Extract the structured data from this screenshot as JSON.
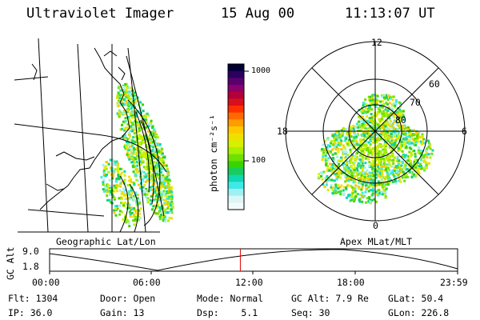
{
  "header": {
    "instrument": "Ultraviolet Imager",
    "date": "15 Aug 00",
    "time": "11:13:07 UT"
  },
  "colorbar": {
    "unit_label": "photon cm⁻²s⁻¹",
    "tick_labels": [
      "1000",
      "100"
    ],
    "colors": [
      "#000033",
      "#2a0060",
      "#5a006e",
      "#8b006b",
      "#b3003a",
      "#d8101a",
      "#ff3000",
      "#ff6a00",
      "#ff9c00",
      "#ffc800",
      "#f0e000",
      "#d6f000",
      "#a8f000",
      "#70e000",
      "#38d400",
      "#18cc60",
      "#10d8b0",
      "#40e8e8",
      "#a0f0f0",
      "#dcf6f6",
      "#f2fbfb"
    ]
  },
  "map_left": {
    "label": "Geographic Lat/Lon"
  },
  "polar_right": {
    "label": "Apex MLat/MLT",
    "hour_labels": [
      "12",
      "18",
      "6",
      "0"
    ],
    "lat_labels": [
      "60",
      "70",
      "80"
    ]
  },
  "timeline": {
    "ylabel": "GC Alt",
    "y_ticks": [
      "9.0",
      "1.8"
    ],
    "x_ticks": [
      "00:00",
      "06:00",
      "12:00",
      "18:00",
      "23:59"
    ],
    "current_time_fraction": 0.4675,
    "marker_color": "#e00000"
  },
  "footer": {
    "row1": [
      "Flt: 1304",
      "Door: Open",
      "Mode: Normal",
      "GC Alt: 7.9 Re",
      "GLat: 50.4"
    ],
    "row2": [
      "IP: 36.0",
      "Gain: 13",
      "Dsp:    5.1",
      "Seq: 30",
      "GLon: 226.8"
    ]
  }
}
